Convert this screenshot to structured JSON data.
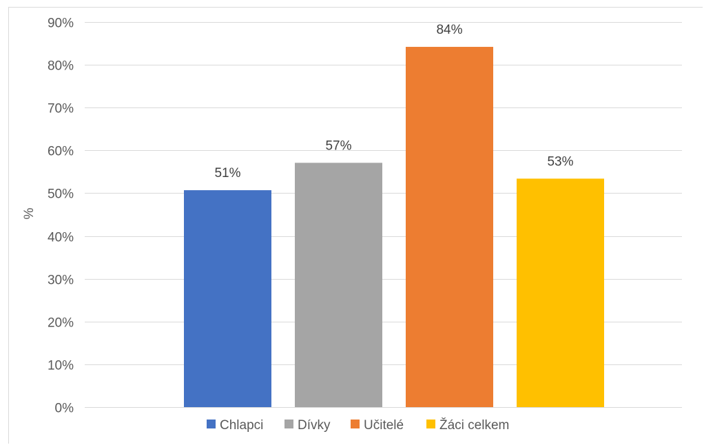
{
  "chart_data": {
    "type": "bar",
    "categories": [
      "Chlapci",
      "Dívky",
      "Učitelé",
      "Žáci celkem"
    ],
    "values": [
      50.7,
      57.1,
      84.2,
      53.4
    ],
    "data_labels": [
      "51%",
      "57%",
      "84%",
      "53%"
    ],
    "colors": [
      "#4472c4",
      "#a5a5a5",
      "#ed7d31",
      "#ffc000"
    ],
    "title": "",
    "xlabel": "",
    "ylabel": "%",
    "ylim": [
      0,
      90
    ],
    "y_ticks": [
      0,
      10,
      20,
      30,
      40,
      50,
      60,
      70,
      80,
      90
    ],
    "y_tick_labels": [
      "0%",
      "10%",
      "20%",
      "30%",
      "40%",
      "50%",
      "60%",
      "70%",
      "80%",
      "90%"
    ],
    "grid": true,
    "legend": {
      "position": "bottom",
      "entries": [
        "Chlapci",
        "Dívky",
        "Učitelé",
        "Žáci celkem"
      ]
    }
  }
}
